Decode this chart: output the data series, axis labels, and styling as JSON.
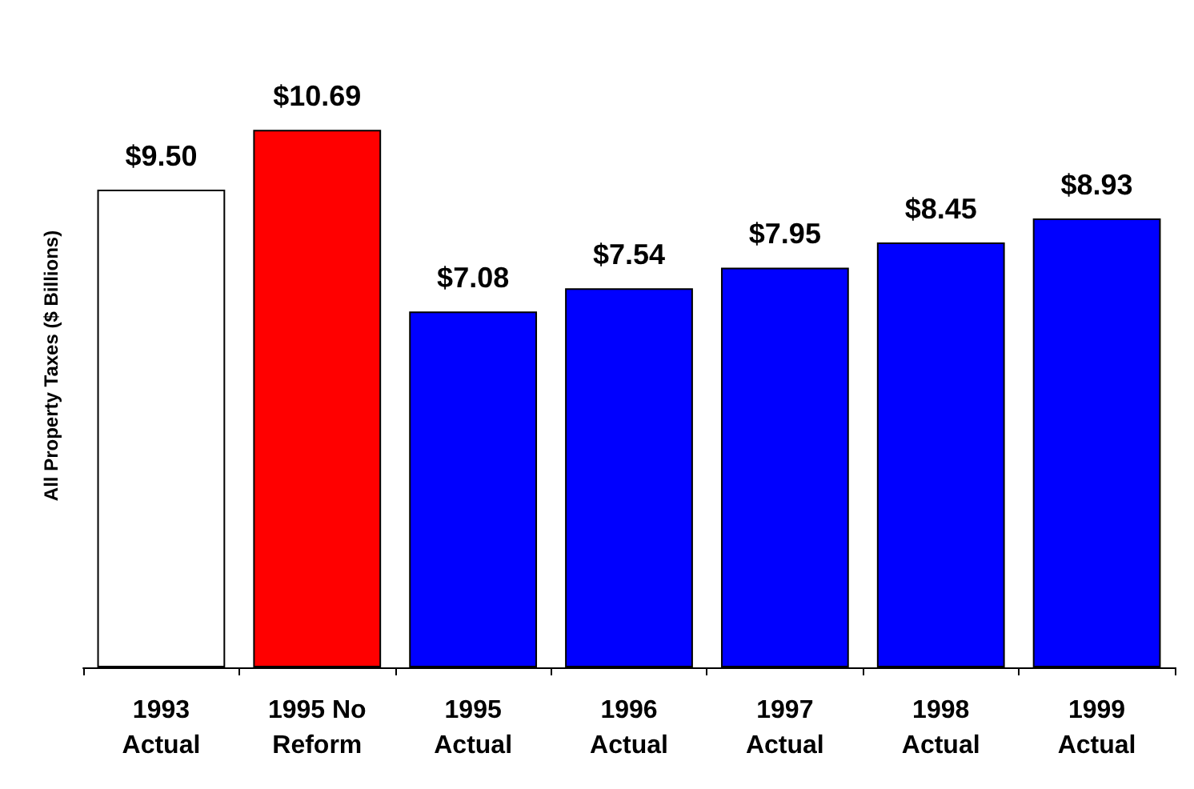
{
  "chart_data": {
    "type": "bar",
    "ylabel": "All Property Taxes ($ Billions)",
    "categories": [
      "1993\nActual",
      "1995 No\nReform",
      "1995\nActual",
      "1996\nActual",
      "1997\nActual",
      "1998\nActual",
      "1999\nActual"
    ],
    "values": [
      9.5,
      10.69,
      7.08,
      7.54,
      7.95,
      8.45,
      8.93
    ],
    "colors": [
      "#ffffff",
      "#ff0000",
      "#0000ff",
      "#0000ff",
      "#0000ff",
      "#0000ff",
      "#0000ff"
    ],
    "value_labels": [
      "$9.50",
      "$10.69",
      "$7.08",
      "$7.54",
      "$7.95",
      "$8.45",
      "$8.93"
    ]
  }
}
